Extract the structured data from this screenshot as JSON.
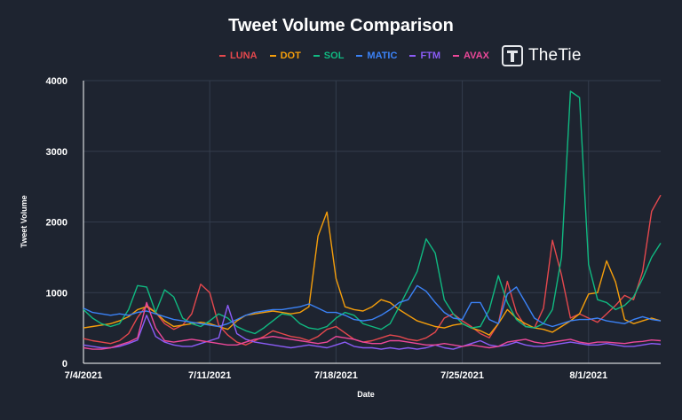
{
  "brand": {
    "logo_icon": "thetie-logo-icon",
    "name": "TheTie"
  },
  "chart_data": {
    "type": "line",
    "title": "Tweet Volume Comparison",
    "xlabel": "Date",
    "ylabel": "Tweet Volume",
    "ylim": [
      0,
      4000
    ],
    "yticks": [
      0,
      1000,
      2000,
      3000,
      4000
    ],
    "x_range": [
      "7/4/2021",
      "8/5/2021"
    ],
    "xticks": [
      "7/4/2021",
      "7/11/2021",
      "7/18/2021",
      "7/25/2021",
      "8/1/2021"
    ],
    "grid": true,
    "legend_position": "top",
    "x": [
      "7/4/2021 00:00",
      "7/4/2021 12:00",
      "7/5/2021 00:00",
      "7/5/2021 12:00",
      "7/6/2021 00:00",
      "7/6/2021 12:00",
      "7/7/2021 00:00",
      "7/7/2021 12:00",
      "7/8/2021 00:00",
      "7/8/2021 12:00",
      "7/9/2021 00:00",
      "7/9/2021 12:00",
      "7/10/2021 00:00",
      "7/10/2021 12:00",
      "7/11/2021 00:00",
      "7/11/2021 12:00",
      "7/12/2021 00:00",
      "7/12/2021 12:00",
      "7/13/2021 00:00",
      "7/13/2021 12:00",
      "7/14/2021 00:00",
      "7/14/2021 12:00",
      "7/15/2021 00:00",
      "7/15/2021 12:00",
      "7/16/2021 00:00",
      "7/16/2021 12:00",
      "7/17/2021 00:00",
      "7/17/2021 12:00",
      "7/18/2021 00:00",
      "7/18/2021 12:00",
      "7/19/2021 00:00",
      "7/19/2021 12:00",
      "7/20/2021 00:00",
      "7/20/2021 12:00",
      "7/21/2021 00:00",
      "7/21/2021 12:00",
      "7/22/2021 00:00",
      "7/22/2021 12:00",
      "7/23/2021 00:00",
      "7/23/2021 12:00",
      "7/24/2021 00:00",
      "7/24/2021 12:00",
      "7/25/2021 00:00",
      "7/25/2021 12:00",
      "7/26/2021 00:00",
      "7/26/2021 12:00",
      "7/27/2021 00:00",
      "7/27/2021 12:00",
      "7/28/2021 00:00",
      "7/28/2021 12:00",
      "7/29/2021 00:00",
      "7/29/2021 12:00",
      "7/30/2021 00:00",
      "7/30/2021 12:00",
      "7/31/2021 00:00",
      "7/31/2021 12:00",
      "8/1/2021 00:00",
      "8/1/2021 12:00",
      "8/2/2021 00:00",
      "8/2/2021 12:00",
      "8/3/2021 00:00",
      "8/3/2021 12:00",
      "8/4/2021 00:00",
      "8/4/2021 12:00",
      "8/5/2021 00:00"
    ],
    "series": [
      {
        "name": "LUNA",
        "color": "#e5484d",
        "values": [
          350,
          320,
          300,
          280,
          320,
          420,
          650,
          820,
          720,
          560,
          480,
          540,
          700,
          1120,
          1000,
          540,
          400,
          300,
          260,
          320,
          380,
          460,
          420,
          380,
          360,
          320,
          380,
          480,
          520,
          430,
          340,
          300,
          320,
          360,
          400,
          380,
          340,
          320,
          360,
          440,
          640,
          700,
          600,
          520,
          420,
          360,
          560,
          1160,
          720,
          520,
          500,
          780,
          1740,
          1250,
          640,
          700,
          640,
          580,
          700,
          820,
          960,
          900,
          1300,
          2150,
          2380
        ]
      },
      {
        "name": "DOT",
        "color": "#f59e0b",
        "values": [
          500,
          520,
          540,
          560,
          600,
          660,
          760,
          800,
          720,
          600,
          520,
          540,
          560,
          580,
          560,
          520,
          480,
          600,
          680,
          700,
          720,
          740,
          720,
          700,
          720,
          800,
          1800,
          2140,
          1200,
          800,
          760,
          740,
          800,
          900,
          860,
          760,
          680,
          600,
          560,
          520,
          500,
          540,
          560,
          500,
          460,
          400,
          560,
          760,
          640,
          560,
          500,
          480,
          440,
          520,
          600,
          700,
          980,
          1000,
          1450,
          1150,
          620,
          560,
          600,
          640,
          600
        ]
      },
      {
        "name": "SOL",
        "color": "#10b981",
        "values": [
          760,
          640,
          560,
          520,
          560,
          760,
          1100,
          1080,
          720,
          1040,
          940,
          640,
          560,
          520,
          600,
          700,
          640,
          520,
          460,
          420,
          500,
          600,
          700,
          680,
          560,
          500,
          480,
          520,
          640,
          720,
          680,
          560,
          520,
          480,
          560,
          800,
          1050,
          1300,
          1760,
          1560,
          900,
          700,
          560,
          500,
          520,
          760,
          1240,
          860,
          620,
          520,
          500,
          560,
          760,
          1500,
          3850,
          3760,
          1400,
          900,
          860,
          760,
          820,
          940,
          1200,
          1500,
          1700
        ]
      },
      {
        "name": "MATIC",
        "color": "#3b82f6",
        "values": [
          780,
          720,
          700,
          680,
          700,
          680,
          720,
          740,
          700,
          660,
          620,
          600,
          580,
          560,
          540,
          520,
          560,
          620,
          680,
          720,
          740,
          760,
          760,
          780,
          800,
          840,
          780,
          720,
          720,
          680,
          620,
          600,
          620,
          680,
          760,
          860,
          900,
          1100,
          1020,
          860,
          720,
          640,
          620,
          860,
          860,
          620,
          560,
          980,
          1080,
          860,
          640,
          560,
          520,
          560,
          600,
          620,
          620,
          640,
          600,
          580,
          560,
          620,
          660,
          620,
          600
        ]
      },
      {
        "name": "FTM",
        "color": "#8b5cf6",
        "values": [
          260,
          240,
          220,
          220,
          240,
          280,
          330,
          680,
          380,
          300,
          260,
          240,
          240,
          280,
          320,
          360,
          820,
          420,
          340,
          300,
          280,
          260,
          240,
          220,
          240,
          260,
          240,
          220,
          260,
          300,
          240,
          220,
          220,
          200,
          220,
          200,
          220,
          200,
          220,
          260,
          220,
          200,
          240,
          280,
          320,
          260,
          240,
          260,
          300,
          260,
          240,
          240,
          260,
          280,
          300,
          280,
          260,
          260,
          280,
          260,
          240,
          240,
          260,
          280,
          270
        ]
      },
      {
        "name": "AVAX",
        "color": "#ec4899",
        "values": [
          220,
          200,
          200,
          220,
          260,
          300,
          360,
          860,
          500,
          320,
          300,
          320,
          340,
          320,
          300,
          280,
          260,
          260,
          300,
          340,
          360,
          380,
          360,
          340,
          320,
          300,
          280,
          300,
          380,
          360,
          340,
          300,
          280,
          280,
          320,
          320,
          300,
          280,
          260,
          260,
          280,
          260,
          240,
          260,
          240,
          220,
          240,
          300,
          320,
          340,
          300,
          280,
          300,
          320,
          340,
          300,
          280,
          300,
          300,
          290,
          280,
          300,
          310,
          330,
          320
        ]
      }
    ]
  }
}
